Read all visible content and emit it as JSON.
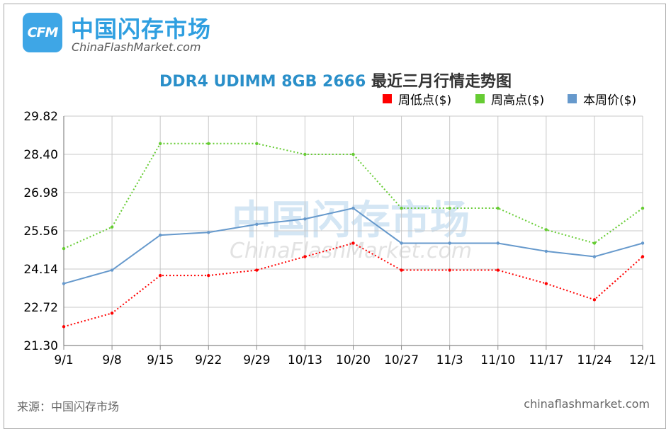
{
  "brand": {
    "logo_text": "CFM",
    "name_cn": "中国闪存市场",
    "name_en": "ChinaFlashMarket.com"
  },
  "footer": {
    "source": "来源：中国闪存市场",
    "site": "chinaflashmarket.com"
  },
  "watermark": {
    "cn": "中国闪存市场",
    "en": "ChinaFlashMarket.com"
  },
  "chart_data": {
    "type": "line",
    "title_en": "DDR4 UDIMM 8GB 2666",
    "title_cn": "最近三月行情走势图",
    "categories": [
      "9/1",
      "9/8",
      "9/15",
      "9/22",
      "9/29",
      "10/13",
      "10/20",
      "10/27",
      "11/3",
      "11/10",
      "11/17",
      "11/24",
      "12/1"
    ],
    "ylim": [
      21.3,
      29.82
    ],
    "yticks": [
      "21.30",
      "22.72",
      "24.14",
      "25.56",
      "26.98",
      "28.40",
      "29.82"
    ],
    "grid": true,
    "legend_position": "top-right",
    "series": [
      {
        "name": "周低点($)",
        "color": "#ff0000",
        "style": "dotted",
        "values": [
          22.0,
          22.5,
          23.9,
          23.9,
          24.1,
          24.6,
          25.1,
          24.1,
          24.1,
          24.1,
          23.6,
          23.0,
          24.6
        ]
      },
      {
        "name": "周高点($)",
        "color": "#66cc33",
        "style": "dotted",
        "values": [
          24.9,
          25.7,
          28.8,
          28.8,
          28.8,
          28.4,
          28.4,
          26.4,
          26.4,
          26.4,
          25.6,
          25.1,
          26.4
        ]
      },
      {
        "name": "本周价($)",
        "color": "#6699cc",
        "style": "solid",
        "values": [
          23.6,
          24.1,
          25.4,
          25.5,
          25.8,
          26.0,
          26.4,
          25.1,
          25.1,
          25.1,
          24.8,
          24.6,
          25.1
        ]
      }
    ]
  }
}
